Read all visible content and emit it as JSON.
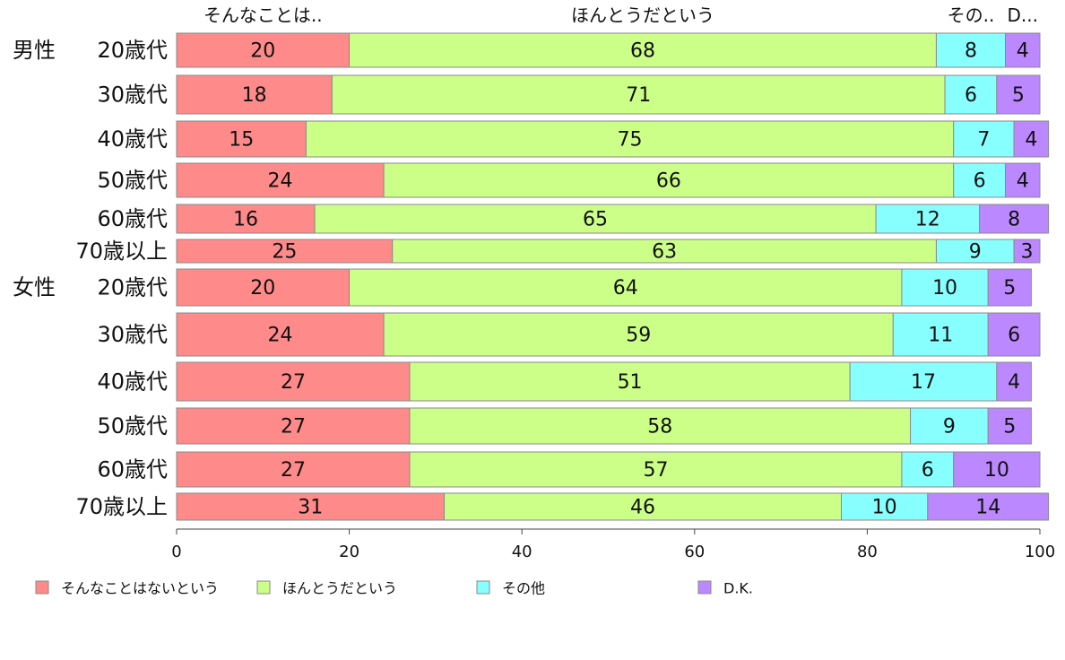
{
  "chart_data": {
    "type": "bar",
    "orientation": "horizontal",
    "stacked": true,
    "xlim": [
      0,
      100
    ],
    "x_ticks": [
      "0",
      "20",
      "40",
      "60",
      "80",
      "100"
    ],
    "top_labels": [
      "そんなことは..",
      "ほんとうだという",
      "その..",
      "D..."
    ],
    "groups": [
      {
        "label": "男性",
        "first_row": 0
      },
      {
        "label": "女性",
        "first_row": 6
      }
    ],
    "categories": [
      "20歳代",
      "30歳代",
      "40歳代",
      "50歳代",
      "60歳代",
      "70歳以上",
      "20歳代",
      "30歳代",
      "40歳代",
      "50歳代",
      "60歳代",
      "70歳以上"
    ],
    "series": [
      {
        "name": "そんなことはないという",
        "color": "#ff8a8a",
        "values": [
          20,
          18,
          15,
          24,
          16,
          25,
          20,
          24,
          27,
          27,
          27,
          31
        ]
      },
      {
        "name": "ほんとうだという",
        "color": "#ccff88",
        "values": [
          68,
          71,
          75,
          66,
          65,
          63,
          64,
          59,
          51,
          58,
          57,
          46
        ]
      },
      {
        "name": "その他",
        "color": "#88ffff",
        "values": [
          8,
          6,
          7,
          6,
          12,
          9,
          10,
          11,
          17,
          9,
          6,
          10
        ]
      },
      {
        "name": "D.K.",
        "color": "#bb88ff",
        "values": [
          4,
          5,
          4,
          4,
          8,
          3,
          5,
          6,
          4,
          5,
          10,
          14
        ]
      }
    ],
    "legend_position": "bottom",
    "grid": false
  }
}
